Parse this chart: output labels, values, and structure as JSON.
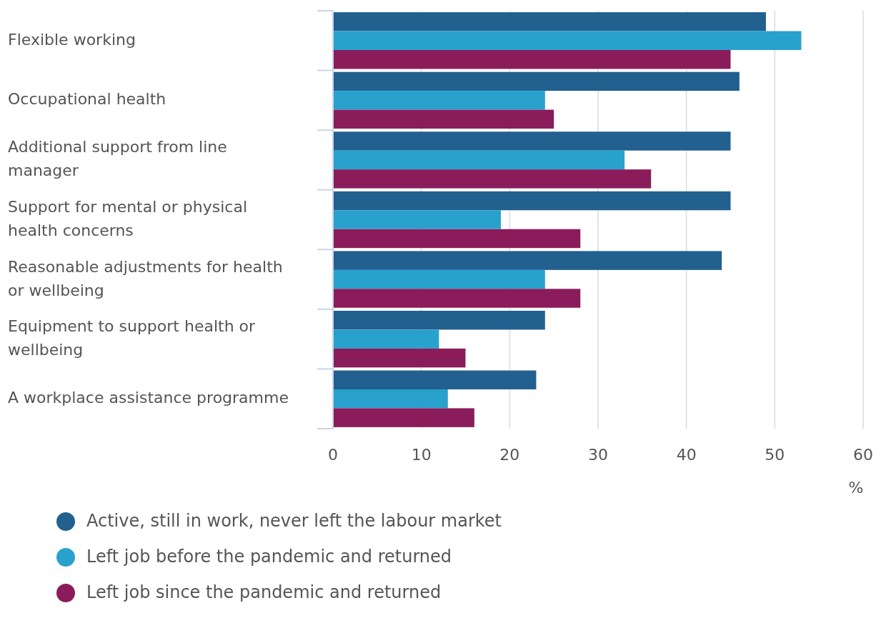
{
  "chart_data": {
    "type": "bar",
    "orientation": "horizontal",
    "xlabel": "%",
    "categories": [
      "Flexible working",
      "Occupational health",
      "Additional support from line manager",
      "Support for mental or physical health concerns",
      "Reasonable adjustments for health or wellbeing",
      "Equipment to support health or wellbeing",
      "A workplace assistance programme"
    ],
    "series": [
      {
        "name": "Active, still in work, never left the labour market",
        "color": "#22608f",
        "values": [
          49,
          46,
          45,
          45,
          44,
          24,
          23
        ]
      },
      {
        "name": "Left job before the pandemic and returned",
        "color": "#28a1cc",
        "values": [
          53,
          24,
          33,
          19,
          24,
          12,
          13
        ]
      },
      {
        "name": "Left job since the pandemic and returned",
        "color": "#8b1c5b",
        "values": [
          45,
          25,
          36,
          28,
          28,
          15,
          16
        ]
      }
    ],
    "xlim": [
      0,
      60
    ],
    "xticks": [
      0,
      10,
      20,
      30,
      40,
      50,
      60
    ],
    "grid": "x",
    "legend": "bottom"
  }
}
